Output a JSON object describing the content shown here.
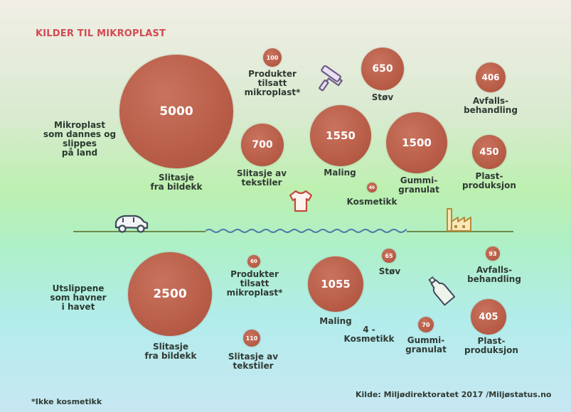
{
  "title": "KILDER TIL MIKROPLAST",
  "land": {
    "heading": [
      "Mikroplast",
      "som dannes og",
      "slippes",
      "på land"
    ],
    "items": [
      {
        "value": "5000",
        "label": [
          "Slitasje",
          "fra bildekk"
        ]
      },
      {
        "value": "100",
        "label": [
          "Produkter",
          "tilsatt",
          "mikroplast*"
        ]
      },
      {
        "value": "650",
        "label": [
          "Støv"
        ]
      },
      {
        "value": "406",
        "label": [
          "Avfalls-",
          "behandling"
        ]
      },
      {
        "value": "700",
        "label": [
          "Slitasje av",
          "tekstiler"
        ]
      },
      {
        "value": "1550",
        "label": [
          "Maling"
        ]
      },
      {
        "value": "1500",
        "label": [
          "Gummi-",
          "granulat"
        ]
      },
      {
        "value": "450",
        "label": [
          "Plast-",
          "produksjon"
        ]
      },
      {
        "value": "40",
        "label": [
          "Kosmetikk"
        ]
      }
    ]
  },
  "sea": {
    "heading": [
      "Utslippene",
      "som havner",
      "i havet"
    ],
    "items": [
      {
        "value": "2500",
        "label": [
          "Slitasje",
          "fra bildekk"
        ]
      },
      {
        "value": "60",
        "label": [
          "Produkter",
          "tilsatt",
          "mikroplast*"
        ]
      },
      {
        "value": "1055",
        "label": [
          "Maling"
        ]
      },
      {
        "value": "65",
        "label": [
          "Støv"
        ]
      },
      {
        "value": "93",
        "label": [
          "Avfalls-",
          "behandling"
        ]
      },
      {
        "value": "110",
        "label": [
          "Slitasje av",
          "tekstiler"
        ]
      },
      {
        "value": "4 -",
        "label": [
          "Kosmetikk"
        ]
      },
      {
        "value": "70",
        "label": [
          "Gummi-",
          "granulat"
        ]
      },
      {
        "value": "405",
        "label": [
          "Plast-",
          "produksjon"
        ]
      }
    ]
  },
  "footnote": "*Ikke kosmetikk",
  "source": "Kilde: Miljødirektoratet 2017 /Miljøstatus.no",
  "colors": {
    "bubble": "#b85d48",
    "title": "#d24a52",
    "ground": "#6b8a4a",
    "water": "#4a7aa6"
  },
  "icons": [
    "paint-roller-icon",
    "tshirt-icon",
    "car-icon",
    "factory-icon",
    "bottle-icon"
  ]
}
